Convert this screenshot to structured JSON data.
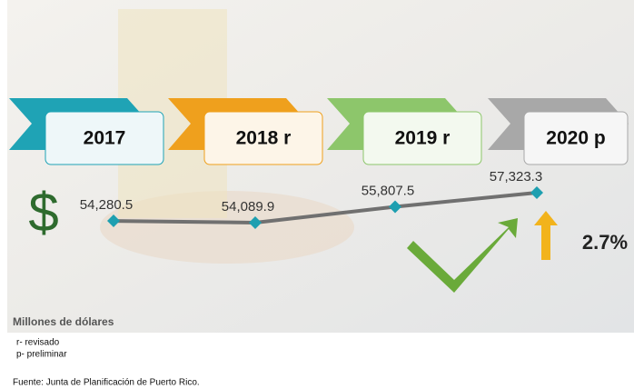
{
  "chart_data": {
    "type": "line",
    "categories": [
      "2017",
      "2018 r",
      "2019 r",
      "2020 p"
    ],
    "values": [
      54280.5,
      54089.9,
      55807.5,
      57323.3
    ],
    "value_labels": [
      "54,280.5",
      "54,089.9",
      "55,807.5",
      "57,323.3"
    ],
    "color": "#707070",
    "marker_color": "#1e9fb0",
    "currency_symbol": "$",
    "growth": "2.7%",
    "unit_label": "Millones de dólares",
    "notes": [
      "r- revisado",
      "p- preliminar"
    ],
    "source": "Fuente: Junta de Planificación de Puerto Rico."
  }
}
